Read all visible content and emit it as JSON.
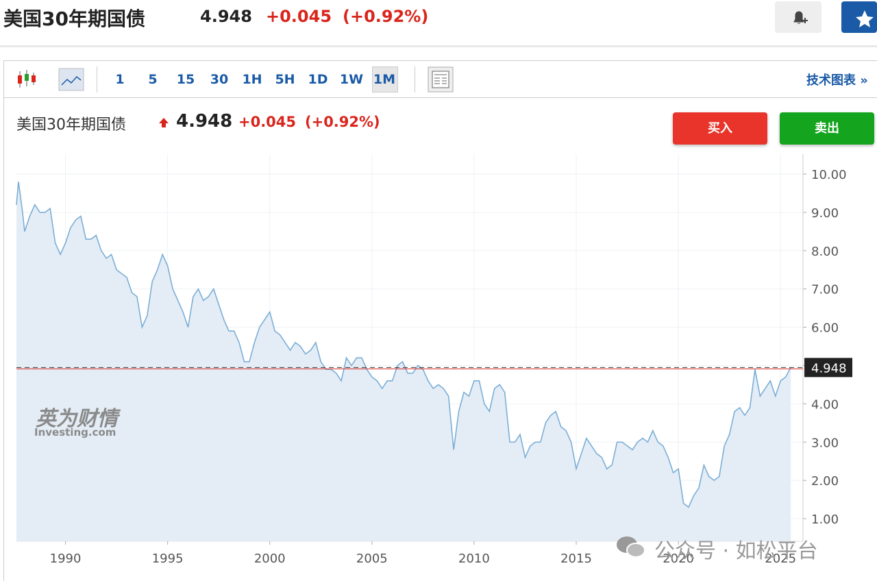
{
  "header": {
    "title": "美国30年期国债",
    "price": "4.948",
    "change": "+0.045",
    "change_pct": "(+0.92%)"
  },
  "toolbar": {
    "intervals": [
      "1",
      "5",
      "15",
      "30",
      "1H",
      "5H",
      "1D",
      "1W",
      "1M"
    ],
    "tech_chart": "技术图表 »"
  },
  "buttons": {
    "buy": "买入",
    "sell": "卖出"
  },
  "logo": {
    "cn": "英为财情",
    "en": "Investing.com"
  },
  "watermark": "公众号 · 如松平台",
  "chart_data": {
    "type": "area",
    "color": "#7aaed6",
    "fill": "#e4edf6",
    "grid": true,
    "last_price": 4.948,
    "xlim": [
      1987.6,
      2026.1
    ],
    "ylim": [
      0.41,
      10.52
    ],
    "xticks": [
      1990,
      1995,
      2000,
      2005,
      2010,
      2015,
      2020,
      2025
    ],
    "yticks": [
      {
        "value": 1,
        "label": "1.00"
      },
      {
        "value": 2,
        "label": "2.00"
      },
      {
        "value": 3,
        "label": "3.00"
      },
      {
        "value": 4,
        "label": "4.00"
      },
      {
        "value": 5,
        "label": "5.00"
      },
      {
        "value": 6,
        "label": "6.00"
      },
      {
        "value": 7,
        "label": "7.00"
      },
      {
        "value": 8,
        "label": "8.00"
      },
      {
        "value": 9,
        "label": "9.00"
      },
      {
        "value": 10,
        "label": "10.00"
      }
    ],
    "x": [
      1987.6,
      1987.7,
      1987.9,
      1988,
      1988.25,
      1988.5,
      1988.75,
      1989,
      1989.25,
      1989.5,
      1989.75,
      1990,
      1990.25,
      1990.5,
      1990.75,
      1991,
      1991.25,
      1991.5,
      1991.75,
      1992,
      1992.25,
      1992.5,
      1992.75,
      1993,
      1993.25,
      1993.5,
      1993.75,
      1994,
      1994.25,
      1994.5,
      1994.75,
      1995,
      1995.25,
      1995.5,
      1995.75,
      1996,
      1996.25,
      1996.5,
      1996.75,
      1997,
      1997.25,
      1997.5,
      1997.75,
      1998,
      1998.25,
      1998.5,
      1998.75,
      1999,
      1999.25,
      1999.5,
      1999.75,
      2000,
      2000.25,
      2000.5,
      2000.75,
      2001,
      2001.25,
      2001.5,
      2001.75,
      2002,
      2002.25,
      2002.5,
      2002.75,
      2003,
      2003.25,
      2003.5,
      2003.75,
      2004,
      2004.25,
      2004.5,
      2004.75,
      2005,
      2005.25,
      2005.5,
      2005.75,
      2006,
      2006.25,
      2006.5,
      2006.75,
      2007,
      2007.25,
      2007.5,
      2007.75,
      2008,
      2008.25,
      2008.5,
      2008.75,
      2009,
      2009.25,
      2009.5,
      2009.75,
      2010,
      2010.25,
      2010.5,
      2010.75,
      2011,
      2011.25,
      2011.5,
      2011.75,
      2012,
      2012.25,
      2012.5,
      2012.75,
      2013,
      2013.25,
      2013.5,
      2013.75,
      2014,
      2014.25,
      2014.5,
      2014.75,
      2015,
      2015.25,
      2015.5,
      2015.75,
      2016,
      2016.25,
      2016.5,
      2016.75,
      2017,
      2017.25,
      2017.5,
      2017.75,
      2018,
      2018.25,
      2018.5,
      2018.75,
      2019,
      2019.25,
      2019.5,
      2019.75,
      2020,
      2020.25,
      2020.5,
      2020.75,
      2021,
      2021.25,
      2021.5,
      2021.75,
      2022,
      2022.25,
      2022.5,
      2022.75,
      2023,
      2023.25,
      2023.5,
      2023.75,
      2024,
      2024.25,
      2024.5,
      2024.75,
      2025,
      2025.25,
      2025.5
    ],
    "values": [
      9.2,
      9.8,
      9.0,
      8.5,
      8.9,
      9.2,
      9.0,
      9.0,
      9.1,
      8.2,
      7.9,
      8.2,
      8.6,
      8.8,
      8.9,
      8.3,
      8.3,
      8.4,
      8.0,
      7.8,
      7.9,
      7.5,
      7.4,
      7.3,
      6.9,
      6.8,
      6.0,
      6.3,
      7.2,
      7.5,
      7.9,
      7.6,
      7.0,
      6.7,
      6.4,
      6.0,
      6.8,
      7.0,
      6.7,
      6.8,
      7.0,
      6.6,
      6.2,
      5.9,
      5.9,
      5.6,
      5.1,
      5.1,
      5.6,
      6.0,
      6.2,
      6.4,
      5.9,
      5.8,
      5.6,
      5.4,
      5.6,
      5.5,
      5.3,
      5.4,
      5.6,
      5.1,
      4.9,
      4.9,
      4.8,
      4.6,
      5.2,
      5.0,
      5.2,
      5.2,
      4.9,
      4.7,
      4.6,
      4.4,
      4.6,
      4.6,
      5.0,
      5.1,
      4.8,
      4.8,
      5.0,
      4.9,
      4.6,
      4.4,
      4.5,
      4.4,
      4.2,
      2.8,
      3.8,
      4.3,
      4.2,
      4.6,
      4.6,
      4.0,
      3.8,
      4.4,
      4.5,
      4.3,
      3.0,
      3.0,
      3.2,
      2.6,
      2.9,
      3.0,
      3.0,
      3.5,
      3.7,
      3.8,
      3.4,
      3.3,
      3.0,
      2.3,
      2.7,
      3.1,
      2.9,
      2.7,
      2.6,
      2.3,
      2.4,
      3.0,
      3.0,
      2.9,
      2.8,
      3.0,
      3.1,
      3.0,
      3.3,
      3.0,
      2.9,
      2.6,
      2.2,
      2.3,
      1.4,
      1.3,
      1.6,
      1.8,
      2.4,
      2.1,
      2.0,
      2.1,
      2.9,
      3.2,
      3.8,
      3.9,
      3.7,
      3.9,
      4.9,
      4.2,
      4.4,
      4.6,
      4.2,
      4.6,
      4.7,
      4.948
    ]
  }
}
